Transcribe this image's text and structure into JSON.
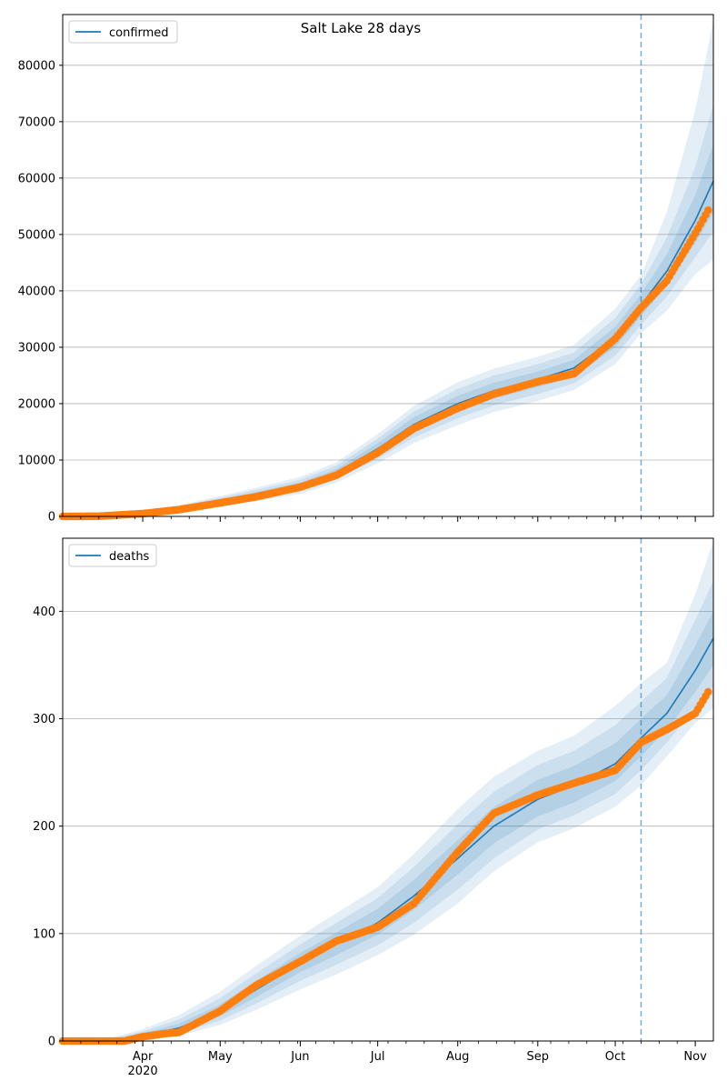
{
  "title": "Salt Lake 28 days",
  "colors": {
    "model": "#1f77b4",
    "observed": "#ff7f0e",
    "band": "#1f77b4",
    "grid": "#b0b0b0",
    "axis": "#000000",
    "cutoff": "#1f77b4"
  },
  "chart_data": [
    {
      "type": "line",
      "name": "confirmed-panel",
      "legend": "confirmed",
      "legend_position": "upper-left",
      "grid": "horizontal",
      "x_axis": {
        "type": "date",
        "range": [
          "2020-03-01",
          "2020-11-08"
        ],
        "month_ticks": [
          "2020-04-01",
          "2020-05-01",
          "2020-06-01",
          "2020-07-01",
          "2020-08-01",
          "2020-09-01",
          "2020-10-01",
          "2020-11-01"
        ],
        "tick_labels_shown": false
      },
      "ylim": [
        0,
        89000
      ],
      "yticks": [
        0,
        10000,
        20000,
        30000,
        40000,
        50000,
        60000,
        70000,
        80000
      ],
      "forecast_start": "2020-10-11",
      "model": {
        "dates": [
          "2020-03-01",
          "2020-03-15",
          "2020-04-01",
          "2020-04-15",
          "2020-05-01",
          "2020-05-15",
          "2020-06-01",
          "2020-06-15",
          "2020-07-01",
          "2020-07-15",
          "2020-08-01",
          "2020-08-15",
          "2020-09-01",
          "2020-09-15",
          "2020-10-01",
          "2020-10-11",
          "2020-10-21",
          "2020-11-01",
          "2020-11-08"
        ],
        "median": [
          0,
          30,
          700,
          1400,
          2700,
          3900,
          5500,
          7800,
          12000,
          16300,
          20000,
          22300,
          24300,
          26300,
          31800,
          37500,
          43500,
          52500,
          59500
        ],
        "inner": [
          [
            0,
            0
          ],
          [
            20,
            40
          ],
          [
            600,
            800
          ],
          [
            1200,
            1600
          ],
          [
            2400,
            3000
          ],
          [
            3500,
            4300
          ],
          [
            5000,
            6000
          ],
          [
            7200,
            8400
          ],
          [
            11000,
            13000
          ],
          [
            15000,
            17600
          ],
          [
            18600,
            21400
          ],
          [
            20900,
            23700
          ],
          [
            22900,
            25700
          ],
          [
            24800,
            27800
          ],
          [
            30000,
            33600
          ],
          [
            35500,
            39500
          ],
          [
            41000,
            46500
          ],
          [
            48500,
            57000
          ],
          [
            54000,
            66000
          ]
        ],
        "mid": [
          [
            0,
            0
          ],
          [
            15,
            50
          ],
          [
            500,
            900
          ],
          [
            1000,
            1800
          ],
          [
            2100,
            3300
          ],
          [
            3100,
            4700
          ],
          [
            4500,
            6500
          ],
          [
            6600,
            9000
          ],
          [
            10200,
            13800
          ],
          [
            14000,
            18600
          ],
          [
            17400,
            22600
          ],
          [
            19700,
            25000
          ],
          [
            21700,
            27000
          ],
          [
            23600,
            29100
          ],
          [
            28500,
            35200
          ],
          [
            34000,
            41200
          ],
          [
            39000,
            49500
          ],
          [
            46000,
            62000
          ],
          [
            50500,
            73000
          ]
        ],
        "outer": [
          [
            0,
            0
          ],
          [
            10,
            60
          ],
          [
            400,
            1000
          ],
          [
            800,
            2000
          ],
          [
            1800,
            3600
          ],
          [
            2700,
            5100
          ],
          [
            4000,
            7000
          ],
          [
            6000,
            9600
          ],
          [
            9400,
            14600
          ],
          [
            13000,
            19600
          ],
          [
            16200,
            23800
          ],
          [
            18500,
            26200
          ],
          [
            20500,
            28300
          ],
          [
            22400,
            30400
          ],
          [
            27000,
            36800
          ],
          [
            32500,
            42800
          ],
          [
            36500,
            54000
          ],
          [
            43000,
            72000
          ],
          [
            45500,
            88000
          ]
        ]
      },
      "observed": {
        "dates": [
          "2020-03-01",
          "2020-03-15",
          "2020-04-01",
          "2020-04-15",
          "2020-05-01",
          "2020-05-15",
          "2020-06-01",
          "2020-06-15",
          "2020-07-01",
          "2020-07-15",
          "2020-08-01",
          "2020-08-15",
          "2020-09-01",
          "2020-09-15",
          "2020-10-01",
          "2020-10-11",
          "2020-10-21",
          "2020-11-01",
          "2020-11-06"
        ],
        "values": [
          0,
          40,
          500,
          1200,
          2400,
          3500,
          5200,
          7300,
          11300,
          15600,
          19200,
          21700,
          23900,
          25300,
          31500,
          37000,
          41800,
          50200,
          54300
        ]
      }
    },
    {
      "type": "line",
      "name": "deaths-panel",
      "legend": "deaths",
      "legend_position": "upper-left",
      "grid": "horizontal",
      "x_axis": {
        "type": "date",
        "range": [
          "2020-03-01",
          "2020-11-08"
        ],
        "month_ticks": [
          "2020-04-01",
          "2020-05-01",
          "2020-06-01",
          "2020-07-01",
          "2020-08-01",
          "2020-09-01",
          "2020-10-01",
          "2020-11-01"
        ],
        "tick_labels": [
          "Apr",
          "May",
          "Jun",
          "Jul",
          "Aug",
          "Sep",
          "Oct",
          "Nov"
        ],
        "year_label": "2020"
      },
      "ylim": [
        0,
        468
      ],
      "yticks": [
        0,
        100,
        200,
        300,
        400
      ],
      "forecast_start": "2020-10-11",
      "model": {
        "dates": [
          "2020-03-01",
          "2020-03-20",
          "2020-04-01",
          "2020-04-15",
          "2020-05-01",
          "2020-05-15",
          "2020-06-01",
          "2020-06-15",
          "2020-07-01",
          "2020-07-15",
          "2020-08-01",
          "2020-08-15",
          "2020-09-01",
          "2020-09-15",
          "2020-10-01",
          "2020-10-11",
          "2020-10-21",
          "2020-11-01",
          "2020-11-08"
        ],
        "median": [
          0,
          0,
          5,
          12,
          28,
          48,
          72,
          90,
          110,
          135,
          170,
          200,
          225,
          238,
          258,
          282,
          305,
          345,
          375
        ],
        "inner": [
          [
            0,
            0
          ],
          [
            0,
            1
          ],
          [
            3,
            7
          ],
          [
            9,
            16
          ],
          [
            23,
            34
          ],
          [
            41,
            56
          ],
          [
            64,
            82
          ],
          [
            80,
            101
          ],
          [
            99,
            123
          ],
          [
            122,
            150
          ],
          [
            155,
            187
          ],
          [
            184,
            218
          ],
          [
            209,
            243
          ],
          [
            222,
            256
          ],
          [
            242,
            277
          ],
          [
            265,
            300
          ],
          [
            290,
            322
          ],
          [
            325,
            368
          ],
          [
            350,
            400
          ]
        ],
        "mid": [
          [
            0,
            0
          ],
          [
            0,
            2
          ],
          [
            2,
            9
          ],
          [
            7,
            20
          ],
          [
            19,
            40
          ],
          [
            35,
            63
          ],
          [
            56,
            90
          ],
          [
            71,
            110
          ],
          [
            89,
            133
          ],
          [
            110,
            162
          ],
          [
            141,
            202
          ],
          [
            170,
            232
          ],
          [
            197,
            257
          ],
          [
            210,
            270
          ],
          [
            230,
            294
          ],
          [
            252,
            316
          ],
          [
            278,
            338
          ],
          [
            310,
            392
          ],
          [
            330,
            428
          ]
        ],
        "outer": [
          [
            0,
            0
          ],
          [
            0,
            3
          ],
          [
            1,
            11
          ],
          [
            5,
            24
          ],
          [
            15,
            46
          ],
          [
            29,
            70
          ],
          [
            48,
            98
          ],
          [
            62,
            119
          ],
          [
            80,
            143
          ],
          [
            99,
            174
          ],
          [
            128,
            216
          ],
          [
            158,
            246
          ],
          [
            185,
            270
          ],
          [
            198,
            284
          ],
          [
            218,
            312
          ],
          [
            238,
            333
          ],
          [
            265,
            352
          ],
          [
            296,
            416
          ],
          [
            310,
            465
          ]
        ]
      },
      "observed": {
        "dates": [
          "2020-03-01",
          "2020-03-25",
          "2020-04-01",
          "2020-04-10",
          "2020-04-15",
          "2020-05-01",
          "2020-05-15",
          "2020-06-01",
          "2020-06-15",
          "2020-07-01",
          "2020-07-15",
          "2020-08-01",
          "2020-08-15",
          "2020-09-01",
          "2020-09-15",
          "2020-10-01",
          "2020-10-11",
          "2020-10-21",
          "2020-11-01",
          "2020-11-06"
        ],
        "values": [
          0,
          0,
          4,
          7,
          8,
          28,
          52,
          74,
          93,
          106,
          128,
          176,
          212,
          229,
          240,
          252,
          278,
          290,
          305,
          325
        ]
      }
    }
  ]
}
